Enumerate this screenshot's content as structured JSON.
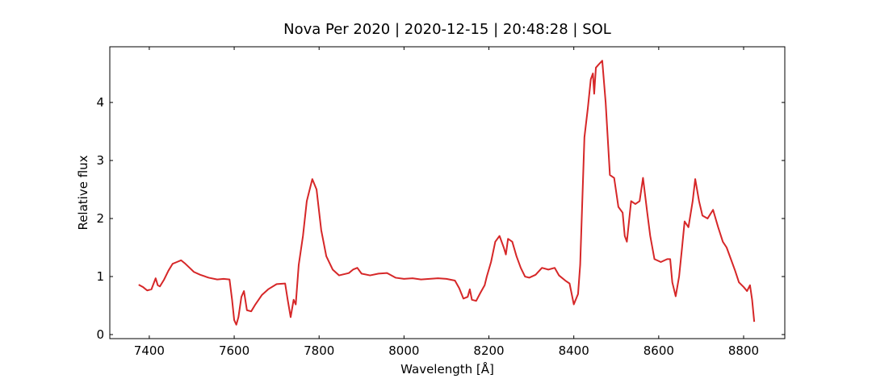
{
  "chart_data": {
    "type": "line",
    "title": "Nova Per 2020 | 2020-12-15 | 20:48:28 | SOL",
    "x_label": "Wavelength [Å]",
    "y_label": "Relative flux",
    "xlim": [
      7307,
      8897
    ],
    "ylim": [
      -0.07,
      4.96
    ],
    "xticks": [
      7400,
      7600,
      7800,
      8000,
      8200,
      8400,
      8600,
      8800
    ],
    "yticks": [
      0,
      1,
      2,
      3,
      4
    ],
    "series": [
      {
        "color": "#d62728",
        "x": [
          7375,
          7385,
          7395,
          7405,
          7415,
          7420,
          7425,
          7435,
          7445,
          7455,
          7465,
          7475,
          7485,
          7495,
          7505,
          7520,
          7540,
          7560,
          7575,
          7589,
          7595,
          7600,
          7605,
          7610,
          7617,
          7623,
          7630,
          7640,
          7650,
          7665,
          7680,
          7700,
          7720,
          7726,
          7733,
          7740,
          7745,
          7752,
          7762,
          7771,
          7784,
          7794,
          7805,
          7817,
          7832,
          7847,
          7870,
          7880,
          7890,
          7900,
          7920,
          7940,
          7960,
          7980,
          8000,
          8020,
          8040,
          8060,
          8080,
          8100,
          8120,
          8130,
          8140,
          8150,
          8155,
          8160,
          8170,
          8180,
          8190,
          8195,
          8205,
          8215,
          8225,
          8235,
          8240,
          8245,
          8255,
          8265,
          8275,
          8285,
          8295,
          8310,
          8325,
          8340,
          8355,
          8365,
          8380,
          8390,
          8400,
          8410,
          8415,
          8425,
          8433,
          8440,
          8445,
          8448,
          8452,
          8458,
          8467,
          8475,
          8485,
          8495,
          8505,
          8515,
          8520,
          8525,
          8535,
          8545,
          8555,
          8563,
          8573,
          8580,
          8590,
          8605,
          8620,
          8627,
          8632,
          8640,
          8648,
          8655,
          8661,
          8670,
          8680,
          8686,
          8695,
          8703,
          8715,
          8728,
          8740,
          8751,
          8760,
          8770,
          8780,
          8789,
          8800,
          8808,
          8815,
          8820,
          8825
        ],
        "values": [
          0.86,
          0.82,
          0.76,
          0.78,
          0.97,
          0.85,
          0.83,
          0.95,
          1.1,
          1.22,
          1.25,
          1.28,
          1.22,
          1.15,
          1.08,
          1.03,
          0.98,
          0.95,
          0.96,
          0.95,
          0.6,
          0.25,
          0.17,
          0.3,
          0.65,
          0.75,
          0.42,
          0.4,
          0.52,
          0.68,
          0.78,
          0.87,
          0.88,
          0.6,
          0.3,
          0.6,
          0.52,
          1.2,
          1.7,
          2.3,
          2.68,
          2.5,
          1.8,
          1.35,
          1.12,
          1.02,
          1.06,
          1.12,
          1.15,
          1.05,
          1.02,
          1.05,
          1.06,
          0.98,
          0.96,
          0.97,
          0.95,
          0.96,
          0.97,
          0.96,
          0.93,
          0.8,
          0.62,
          0.65,
          0.78,
          0.6,
          0.58,
          0.72,
          0.85,
          1.0,
          1.25,
          1.6,
          1.7,
          1.5,
          1.38,
          1.65,
          1.6,
          1.35,
          1.15,
          1.0,
          0.98,
          1.03,
          1.15,
          1.12,
          1.15,
          1.02,
          0.93,
          0.88,
          0.52,
          0.7,
          1.2,
          3.4,
          3.9,
          4.4,
          4.5,
          4.15,
          4.6,
          4.65,
          4.72,
          4.0,
          2.75,
          2.7,
          2.2,
          2.1,
          1.7,
          1.6,
          2.3,
          2.25,
          2.3,
          2.7,
          2.1,
          1.7,
          1.3,
          1.25,
          1.3,
          1.3,
          0.9,
          0.66,
          1.0,
          1.5,
          1.95,
          1.85,
          2.3,
          2.68,
          2.3,
          2.05,
          2.0,
          2.15,
          1.85,
          1.6,
          1.5,
          1.3,
          1.1,
          0.9,
          0.82,
          0.75,
          0.85,
          0.6,
          0.22
        ]
      }
    ]
  }
}
